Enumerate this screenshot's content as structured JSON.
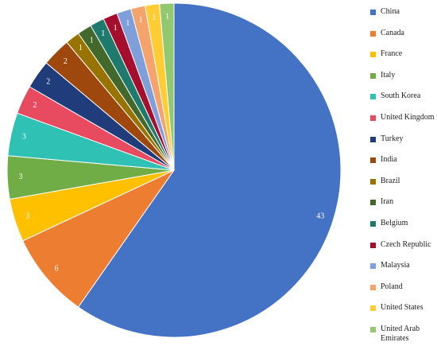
{
  "chart_data": {
    "type": "pie",
    "title": "",
    "legend_position": "right",
    "start_angle_deg": 0,
    "direction": "clockwise",
    "slices": [
      {
        "label": "China",
        "value": 43,
        "color": "#4472C4"
      },
      {
        "label": "Canada",
        "value": 6,
        "color": "#ED7D31"
      },
      {
        "label": "France",
        "value": 3,
        "color": "#FFC000"
      },
      {
        "label": "Italy",
        "value": 3,
        "color": "#70AD47"
      },
      {
        "label": "South Korea",
        "value": 3,
        "color": "#2FC1B3"
      },
      {
        "label": "United Kingdom",
        "value": 2,
        "color": "#E84A5F"
      },
      {
        "label": "Turkey",
        "value": 2,
        "color": "#203C7A"
      },
      {
        "label": "India",
        "value": 2,
        "color": "#9E480E"
      },
      {
        "label": "Brazil",
        "value": 1,
        "color": "#997300"
      },
      {
        "label": "Iran",
        "value": 1,
        "color": "#43682B"
      },
      {
        "label": "Belgium",
        "value": 1,
        "color": "#1F7A6E"
      },
      {
        "label": "Czech Republic",
        "value": 1,
        "color": "#A50F2D"
      },
      {
        "label": "Malaysia",
        "value": 1,
        "color": "#7F9FDA"
      },
      {
        "label": "Poland",
        "value": 1,
        "color": "#F4A36C"
      },
      {
        "label": "United States",
        "value": 1,
        "color": "#FFCD33"
      },
      {
        "label": "United Arab Emirates",
        "value": 1,
        "color": "#92C86F"
      }
    ]
  }
}
